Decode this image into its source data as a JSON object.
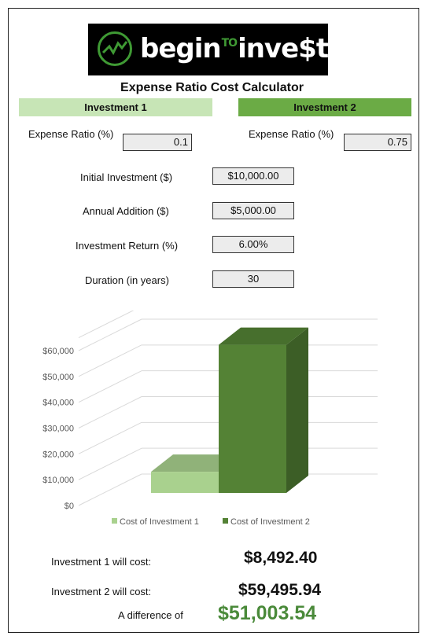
{
  "logo": {
    "part1": "begin",
    "part2": "TO",
    "part3": "inve",
    "part4": "$",
    "part5": "t"
  },
  "title": "Expense Ratio Cost Calculator",
  "investment1": {
    "header": "Investment 1",
    "expense_label": "Expense Ratio (%)",
    "expense_value": "0.1"
  },
  "investment2": {
    "header": "Investment 2",
    "expense_label": "Expense Ratio (%)",
    "expense_value": "0.75"
  },
  "inputs": {
    "initial_label": "Initial Investment ($)",
    "initial_value": "$10,000.00",
    "annual_label": "Annual Addition ($)",
    "annual_value": "$5,000.00",
    "return_label": "Investment Return (%)",
    "return_value": "6.00%",
    "duration_label": "Duration (in years)",
    "duration_value": "30"
  },
  "chart_data": {
    "type": "bar",
    "categories": [
      ""
    ],
    "series": [
      {
        "name": "Cost of Investment 1",
        "values": [
          8492.4
        ],
        "color": "#a9d18e"
      },
      {
        "name": "Cost of Investment 2",
        "values": [
          59495.94
        ],
        "color": "#548235"
      }
    ],
    "ylim": [
      0,
      60000
    ],
    "yticks": [
      "$0",
      "$10,000",
      "$20,000",
      "$30,000",
      "$40,000",
      "$50,000",
      "$60,000"
    ],
    "legend_position": "bottom",
    "grid": true
  },
  "results": {
    "inv1_label": "Investment 1 will cost:",
    "inv1_value": "$8,492.40",
    "inv2_label": "Investment 2 will cost:",
    "inv2_value": "$59,495.94",
    "diff_label": "A difference of",
    "diff_value": "$51,003.54"
  }
}
